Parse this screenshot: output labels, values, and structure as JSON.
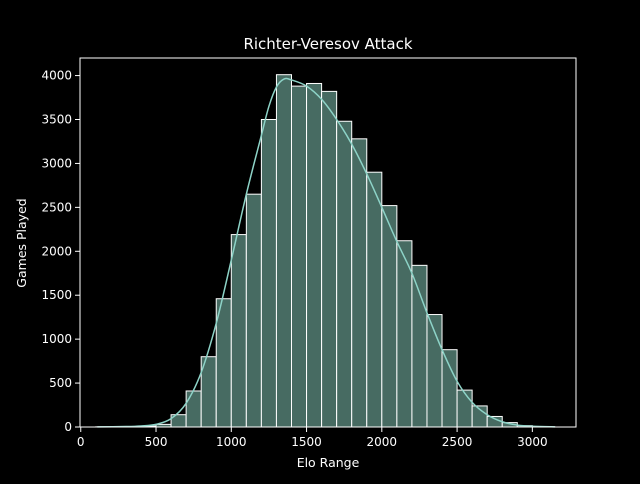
{
  "chart_data": {
    "type": "bar",
    "title": "Richter-Veresov Attack",
    "xlabel": "Elo Range",
    "ylabel": "Games Played",
    "xlim": [
      -5,
      3290
    ],
    "ylim": [
      0,
      4200
    ],
    "xticks": [
      0,
      500,
      1000,
      1500,
      2000,
      2500,
      3000
    ],
    "yticks": [
      0,
      500,
      1000,
      1500,
      2000,
      2500,
      3000,
      3500,
      4000
    ],
    "bins": [
      {
        "x0": 100,
        "x1": 200,
        "value": 2
      },
      {
        "x0": 200,
        "x1": 300,
        "value": 3
      },
      {
        "x0": 300,
        "x1": 400,
        "value": 5
      },
      {
        "x0": 400,
        "x1": 500,
        "value": 10
      },
      {
        "x0": 500,
        "x1": 600,
        "value": 30
      },
      {
        "x0": 600,
        "x1": 700,
        "value": 140
      },
      {
        "x0": 700,
        "x1": 800,
        "value": 410
      },
      {
        "x0": 800,
        "x1": 900,
        "value": 800
      },
      {
        "x0": 900,
        "x1": 1000,
        "value": 1460
      },
      {
        "x0": 1000,
        "x1": 1100,
        "value": 2190
      },
      {
        "x0": 1100,
        "x1": 1200,
        "value": 2650
      },
      {
        "x0": 1200,
        "x1": 1300,
        "value": 3500
      },
      {
        "x0": 1300,
        "x1": 1400,
        "value": 4010
      },
      {
        "x0": 1400,
        "x1": 1500,
        "value": 3880
      },
      {
        "x0": 1500,
        "x1": 1600,
        "value": 3910
      },
      {
        "x0": 1600,
        "x1": 1700,
        "value": 3820
      },
      {
        "x0": 1700,
        "x1": 1800,
        "value": 3480
      },
      {
        "x0": 1800,
        "x1": 1900,
        "value": 3280
      },
      {
        "x0": 1900,
        "x1": 2000,
        "value": 2900
      },
      {
        "x0": 2000,
        "x1": 2100,
        "value": 2520
      },
      {
        "x0": 2100,
        "x1": 2200,
        "value": 2120
      },
      {
        "x0": 2200,
        "x1": 2300,
        "value": 1840
      },
      {
        "x0": 2300,
        "x1": 2400,
        "value": 1280
      },
      {
        "x0": 2400,
        "x1": 2500,
        "value": 880
      },
      {
        "x0": 2500,
        "x1": 2600,
        "value": 420
      },
      {
        "x0": 2600,
        "x1": 2700,
        "value": 240
      },
      {
        "x0": 2700,
        "x1": 2800,
        "value": 120
      },
      {
        "x0": 2800,
        "x1": 2900,
        "value": 50
      },
      {
        "x0": 2900,
        "x1": 3000,
        "value": 15
      },
      {
        "x0": 3000,
        "x1": 3100,
        "value": 5
      },
      {
        "x0": 3100,
        "x1": 3150,
        "value": 2
      }
    ],
    "kde": [
      [
        110,
        2
      ],
      [
        300,
        5
      ],
      [
        400,
        12
      ],
      [
        500,
        30
      ],
      [
        600,
        95
      ],
      [
        700,
        270
      ],
      [
        800,
        620
      ],
      [
        900,
        1180
      ],
      [
        1000,
        1900
      ],
      [
        1100,
        2650
      ],
      [
        1200,
        3320
      ],
      [
        1250,
        3650
      ],
      [
        1300,
        3870
      ],
      [
        1350,
        3960
      ],
      [
        1400,
        3950
      ],
      [
        1500,
        3880
      ],
      [
        1600,
        3730
      ],
      [
        1700,
        3500
      ],
      [
        1800,
        3220
      ],
      [
        1900,
        2880
      ],
      [
        2000,
        2500
      ],
      [
        2100,
        2110
      ],
      [
        2200,
        1750
      ],
      [
        2300,
        1300
      ],
      [
        2400,
        880
      ],
      [
        2500,
        520
      ],
      [
        2600,
        280
      ],
      [
        2700,
        140
      ],
      [
        2800,
        60
      ],
      [
        2900,
        22
      ],
      [
        3000,
        8
      ],
      [
        3150,
        2
      ]
    ],
    "colors": {
      "background": "#000000",
      "bar_fill": "#476b62",
      "bar_edge": "#ffffff",
      "kde_line": "#8dd3c7",
      "text": "#ffffff",
      "axes": "#ffffff"
    },
    "grid": false,
    "legend": "none"
  }
}
